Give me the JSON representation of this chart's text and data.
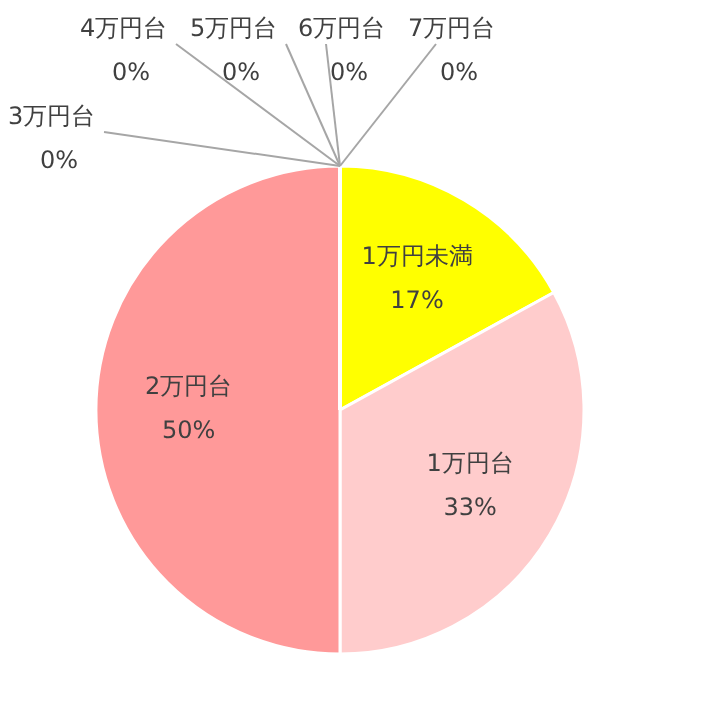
{
  "chart_data": {
    "type": "pie",
    "categories": [
      "1万円未満",
      "1万円台",
      "2万円台",
      "3万円台",
      "4万円台",
      "5万円台",
      "6万円台",
      "7万円台"
    ],
    "values": [
      17,
      33,
      50,
      0,
      0,
      0,
      0,
      0
    ],
    "value_labels": [
      "17%",
      "33%",
      "50%",
      "0%",
      "0%",
      "0%",
      "0%",
      "0%"
    ],
    "colors": [
      "#ffff00",
      "#ffcccc",
      "#ff9999",
      "#ff6666",
      "#cc9999",
      "#ffcc99",
      "#ffff99",
      "#ff9966"
    ]
  }
}
